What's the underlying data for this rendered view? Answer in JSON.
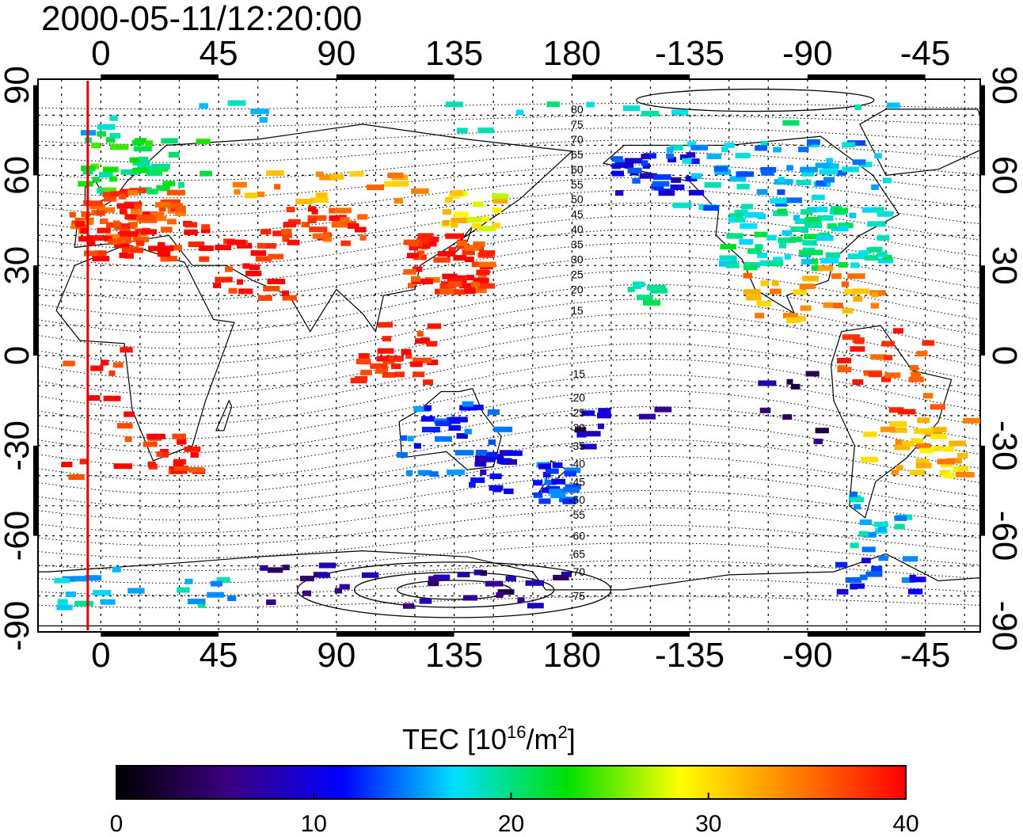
{
  "title": "2000-05-11/12:20:00",
  "map": {
    "type": "global TEC map",
    "projection": "equirectangular",
    "lon_range_deg": [
      -24,
      336
    ],
    "lat_range_deg": [
      -92,
      92
    ],
    "top_lon_ticks": [
      "0",
      "45",
      "90",
      "135",
      "180",
      "-135",
      "-90",
      "-45"
    ],
    "top_lon_values": [
      0,
      45,
      90,
      135,
      180,
      225,
      270,
      315
    ],
    "bottom_lon_ticks": [
      "0",
      "45",
      "90",
      "135",
      "180",
      "-135",
      "-90",
      "-45"
    ],
    "bottom_lon_values": [
      0,
      45,
      90,
      135,
      180,
      225,
      270,
      315
    ],
    "lat_ticks": [
      "90",
      "60",
      "30",
      "0",
      "-30",
      "-60",
      "-90"
    ],
    "lat_values": [
      90,
      60,
      30,
      0,
      -30,
      -60,
      -90
    ],
    "grid_lon_step_deg": 15,
    "grid_lat_step_deg": 10,
    "red_meridian_lon": -5,
    "contour_labels": [
      "80",
      "75",
      "70",
      "65",
      "60",
      "55",
      "50",
      "45",
      "40",
      "35",
      "30",
      "25",
      "20",
      "15",
      "-15",
      "-20",
      "-25",
      "-30",
      "-35",
      "-40",
      "-45",
      "-50",
      "-55",
      "-60",
      "-65",
      "-70",
      "-75"
    ],
    "contour_label_lats": [
      82,
      77,
      72,
      67,
      62,
      57,
      52,
      47,
      42,
      37,
      32,
      27,
      22,
      15,
      -6,
      -14,
      -19,
      -24,
      -30,
      -36,
      -42,
      -48,
      -53,
      -60,
      -66,
      -72,
      -80
    ],
    "contour_label_lon": 182,
    "contours_lat_values": [
      85,
      80,
      75,
      70,
      65,
      60,
      55,
      50,
      45,
      40,
      35,
      30,
      25,
      20,
      15,
      10,
      5,
      0,
      -5,
      -10,
      -15,
      -20,
      -25,
      -30,
      -35,
      -40,
      -45,
      -50,
      -55,
      -60,
      -65,
      -70,
      -75,
      -80
    ]
  },
  "tec_patches": [
    {
      "region": "northern-europe",
      "lon": [
        -10,
        40
      ],
      "lat": [
        55,
        75
      ],
      "tec": 22,
      "count": 40
    },
    {
      "region": "central-europe",
      "lon": [
        -12,
        30
      ],
      "lat": [
        40,
        56
      ],
      "tec": 37,
      "count": 60
    },
    {
      "region": "iberia-med",
      "lon": [
        -10,
        40
      ],
      "lat": [
        33,
        45
      ],
      "tec": 39,
      "count": 40
    },
    {
      "region": "middle-east",
      "lon": [
        40,
        70
      ],
      "lat": [
        20,
        40
      ],
      "tec": 39,
      "count": 25
    },
    {
      "region": "central-asia",
      "lon": [
        60,
        100
      ],
      "lat": [
        38,
        50
      ],
      "tec": 38,
      "count": 30
    },
    {
      "region": "siberia",
      "lon": [
        50,
        120
      ],
      "lat": [
        52,
        62
      ],
      "tec": 33,
      "count": 20
    },
    {
      "region": "east-asia",
      "lon": [
        115,
        145
      ],
      "lat": [
        22,
        42
      ],
      "tec": 38,
      "count": 60
    },
    {
      "region": "japan-north",
      "lon": [
        130,
        150
      ],
      "lat": [
        42,
        56
      ],
      "tec": 30,
      "count": 20
    },
    {
      "region": "se-asia",
      "lon": [
        95,
        125
      ],
      "lat": [
        -8,
        12
      ],
      "tec": 39,
      "count": 30
    },
    {
      "region": "s-africa",
      "lon": [
        15,
        35
      ],
      "lat": [
        -38,
        -25
      ],
      "tec": 39,
      "count": 20
    },
    {
      "region": "w-africa",
      "lon": [
        -20,
        10
      ],
      "lat": [
        -45,
        10
      ],
      "tec": 39,
      "count": 15
    },
    {
      "region": "australia",
      "lon": [
        113,
        153
      ],
      "lat": [
        -40,
        -15
      ],
      "tec": 13,
      "count": 35
    },
    {
      "region": "se-australia",
      "lon": [
        140,
        155
      ],
      "lat": [
        -45,
        -30
      ],
      "tec": 10,
      "count": 15
    },
    {
      "region": "new-zealand",
      "lon": [
        165,
        180
      ],
      "lat": [
        -48,
        -35
      ],
      "tec": 13,
      "count": 20
    },
    {
      "region": "alaska",
      "lon": [
        195,
        225
      ],
      "lat": [
        55,
        70
      ],
      "tec": 11,
      "count": 30
    },
    {
      "region": "canada",
      "lon": [
        215,
        300
      ],
      "lat": [
        50,
        72
      ],
      "tec": 16,
      "count": 60
    },
    {
      "region": "north-america",
      "lon": [
        235,
        300
      ],
      "lat": [
        30,
        50
      ],
      "tec": 19,
      "count": 80
    },
    {
      "region": "mexico-caribbean",
      "lon": [
        245,
        300
      ],
      "lat": [
        12,
        30
      ],
      "tec": 33,
      "count": 30
    },
    {
      "region": "s-america-n",
      "lon": [
        280,
        320
      ],
      "lat": [
        -20,
        10
      ],
      "tec": 37,
      "count": 25
    },
    {
      "region": "s-america-s",
      "lon": [
        290,
        330
      ],
      "lat": [
        -40,
        -20
      ],
      "tec": 32,
      "count": 35
    },
    {
      "region": "patagonia",
      "lon": [
        285,
        305
      ],
      "lat": [
        -65,
        -45
      ],
      "tec": 17,
      "count": 15
    },
    {
      "region": "antarctic-peninsula",
      "lon": [
        280,
        310
      ],
      "lat": [
        -78,
        -64
      ],
      "tec": 12,
      "count": 15
    },
    {
      "region": "antarctica-east",
      "lon": [
        60,
        180
      ],
      "lat": [
        -84,
        -68
      ],
      "tec": 6,
      "count": 30
    },
    {
      "region": "antarctica-west",
      "lon": [
        -20,
        60
      ],
      "lat": [
        -84,
        -70
      ],
      "tec": 17,
      "count": 20
    },
    {
      "region": "pacific-islands",
      "lon": [
        180,
        220
      ],
      "lat": [
        -30,
        -15
      ],
      "tec": 7,
      "count": 10
    },
    {
      "region": "east-pacific",
      "lon": [
        250,
        275
      ],
      "lat": [
        -35,
        -5
      ],
      "tec": 5,
      "count": 8
    },
    {
      "region": "hawaii",
      "lon": [
        200,
        210
      ],
      "lat": [
        18,
        26
      ],
      "tec": 20,
      "count": 8
    },
    {
      "region": "arctic",
      "lon": [
        -15,
        350
      ],
      "lat": [
        75,
        85
      ],
      "tec": 18,
      "count": 20
    }
  ],
  "colorbar": {
    "title_main": "TEC  [10",
    "title_exp": "16",
    "title_mid": "/m",
    "title_exp2": "2",
    "title_end": "]",
    "min": 0,
    "max": 40,
    "ticks": [
      "0",
      "10",
      "20",
      "30",
      "40"
    ],
    "tick_values": [
      0,
      10,
      20,
      30,
      40
    ],
    "stops": [
      "#000000",
      "#3b0080",
      "#0000ff",
      "#00e0ff",
      "#00e000",
      "#ffff00",
      "#ff8000",
      "#ff0000"
    ]
  }
}
